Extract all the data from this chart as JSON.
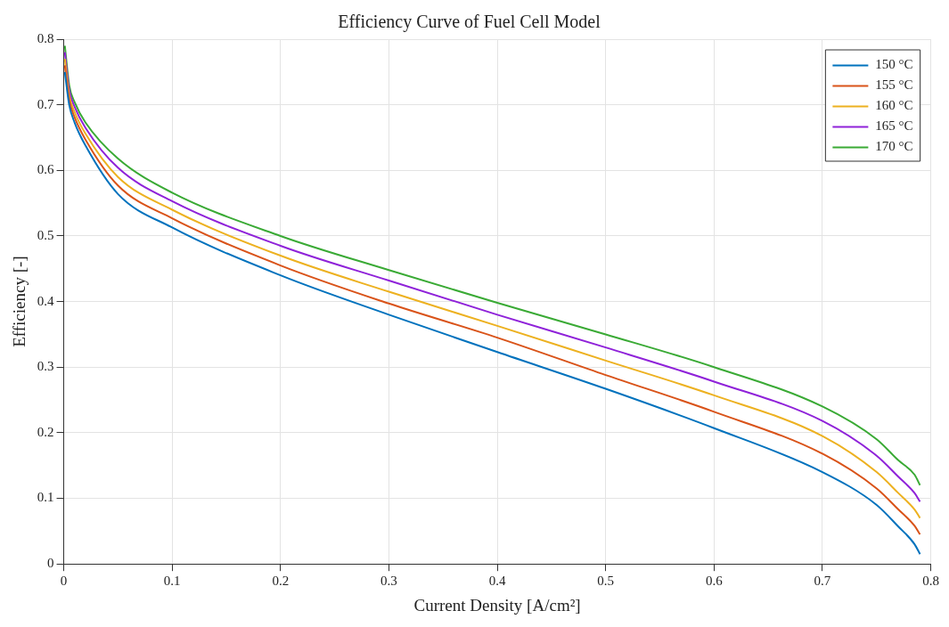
{
  "chart_data": {
    "type": "line",
    "title": "Efficiency Curve of Fuel Cell Model",
    "xlabel": "Current Density [A/cm²]",
    "ylabel": "Efficiency [-]",
    "x": [
      0.001,
      0.005,
      0.01,
      0.02,
      0.05,
      0.1,
      0.2,
      0.3,
      0.4,
      0.5,
      0.6,
      0.7,
      0.75,
      0.77,
      0.785,
      0.79
    ],
    "series": [
      {
        "name": "150 °C",
        "color": "#0072bd",
        "values": [
          0.75,
          0.7,
          0.673,
          0.638,
          0.564,
          0.513,
          0.44,
          0.38,
          0.323,
          0.267,
          0.207,
          0.14,
          0.09,
          0.057,
          0.03,
          0.015
        ]
      },
      {
        "name": "155 °C",
        "color": "#d95319",
        "values": [
          0.76,
          0.708,
          0.681,
          0.647,
          0.577,
          0.527,
          0.455,
          0.397,
          0.345,
          0.288,
          0.232,
          0.168,
          0.115,
          0.083,
          0.058,
          0.045
        ]
      },
      {
        "name": "160 °C",
        "color": "#edb120",
        "values": [
          0.77,
          0.715,
          0.689,
          0.656,
          0.59,
          0.54,
          0.47,
          0.415,
          0.363,
          0.31,
          0.257,
          0.195,
          0.14,
          0.108,
          0.083,
          0.07
        ]
      },
      {
        "name": "165 °C",
        "color": "#8f22d9",
        "values": [
          0.78,
          0.723,
          0.697,
          0.665,
          0.604,
          0.553,
          0.485,
          0.432,
          0.38,
          0.33,
          0.278,
          0.218,
          0.165,
          0.133,
          0.108,
          0.095
        ]
      },
      {
        "name": "170 °C",
        "color": "#3aaa35",
        "values": [
          0.79,
          0.73,
          0.704,
          0.673,
          0.618,
          0.566,
          0.5,
          0.448,
          0.398,
          0.35,
          0.3,
          0.24,
          0.19,
          0.158,
          0.136,
          0.12
        ]
      }
    ],
    "xlim": [
      0,
      0.8
    ],
    "xticks": [
      0,
      0.1,
      0.2,
      0.3,
      0.4,
      0.5,
      0.6,
      0.7,
      0.8
    ],
    "ylim": [
      0,
      0.8
    ],
    "yticks": [
      0,
      0.1,
      0.2,
      0.3,
      0.4,
      0.5,
      0.6,
      0.7,
      0.8
    ],
    "grid": true,
    "legend": "top right",
    "marker": "none",
    "line_style": "solid"
  }
}
